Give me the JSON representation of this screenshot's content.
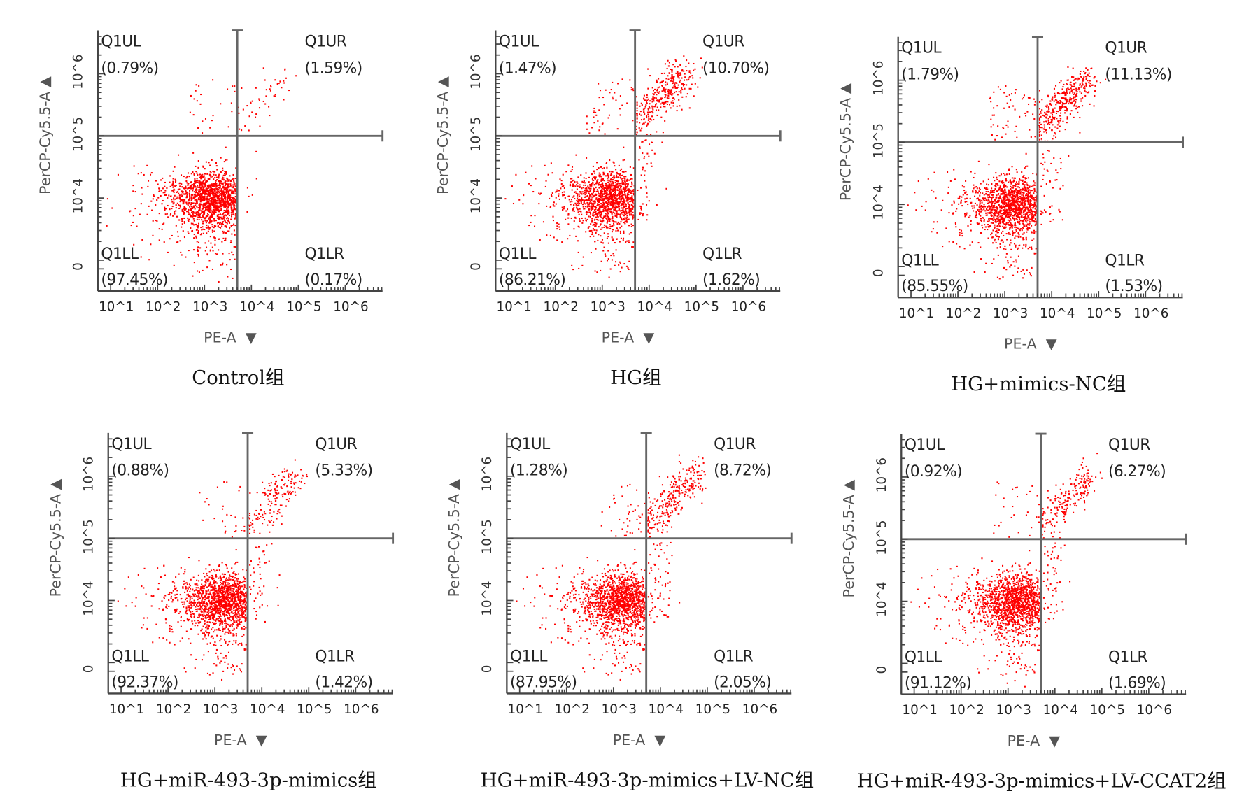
{
  "chart_data": [
    {
      "type": "scatter",
      "title": "Control组",
      "xlabel": "PE-A",
      "ylabel": "PerCP-Cy5.5-A",
      "x_scale": "log",
      "y_scale": "biexponential",
      "x_ticks": [
        "10^1",
        "10^2",
        "10^3",
        "10^4",
        "10^5",
        "10^6"
      ],
      "y_ticks": [
        "0",
        "10^4",
        "10^5",
        "10^6"
      ],
      "x_gate": 5000,
      "y_gate": 100000,
      "quadrants": {
        "UL": {
          "label": "Q1UL",
          "percent": "(0.79%)",
          "value": 0.79
        },
        "UR": {
          "label": "Q1UR",
          "percent": "(1.59%)",
          "value": 1.59
        },
        "LL": {
          "label": "Q1LL",
          "percent": "(97.45%)",
          "value": 97.45
        },
        "LR": {
          "label": "Q1LR",
          "percent": "(0.17%)",
          "value": 0.17
        }
      }
    },
    {
      "type": "scatter",
      "title": "HG组",
      "xlabel": "PE-A",
      "ylabel": "PerCP-Cy5.5-A",
      "x_scale": "log",
      "y_scale": "biexponential",
      "x_ticks": [
        "10^1",
        "10^2",
        "10^3",
        "10^4",
        "10^5",
        "10^6"
      ],
      "y_ticks": [
        "0",
        "10^4",
        "10^5",
        "10^6"
      ],
      "x_gate": 5000,
      "y_gate": 100000,
      "quadrants": {
        "UL": {
          "label": "Q1UL",
          "percent": "(1.47%)",
          "value": 1.47
        },
        "UR": {
          "label": "Q1UR",
          "percent": "(10.70%)",
          "value": 10.7
        },
        "LL": {
          "label": "Q1LL",
          "percent": "(86.21%)",
          "value": 86.21
        },
        "LR": {
          "label": "Q1LR",
          "percent": "(1.62%)",
          "value": 1.62
        }
      }
    },
    {
      "type": "scatter",
      "title": "HG+mimics-NC组",
      "xlabel": "PE-A",
      "ylabel": "PerCP-Cy5.5-A",
      "x_scale": "log",
      "y_scale": "biexponential",
      "x_ticks": [
        "10^1",
        "10^2",
        "10^3",
        "10^4",
        "10^5",
        "10^6"
      ],
      "y_ticks": [
        "0",
        "10^4",
        "10^5",
        "10^6"
      ],
      "x_gate": 5000,
      "y_gate": 100000,
      "quadrants": {
        "UL": {
          "label": "Q1UL",
          "percent": "(1.79%)",
          "value": 1.79
        },
        "UR": {
          "label": "Q1UR",
          "percent": "(11.13%)",
          "value": 11.13
        },
        "LL": {
          "label": "Q1LL",
          "percent": "(85.55%)",
          "value": 85.55
        },
        "LR": {
          "label": "Q1LR",
          "percent": "(1.53%)",
          "value": 1.53
        }
      }
    },
    {
      "type": "scatter",
      "title": "HG+miR-493-3p-mimics组",
      "xlabel": "PE-A",
      "ylabel": "PerCP-Cy5.5-A",
      "x_scale": "log",
      "y_scale": "biexponential",
      "x_ticks": [
        "10^1",
        "10^2",
        "10^3",
        "10^4",
        "10^5",
        "10^6"
      ],
      "y_ticks": [
        "0",
        "10^4",
        "10^5",
        "10^6"
      ],
      "x_gate": 5000,
      "y_gate": 100000,
      "quadrants": {
        "UL": {
          "label": "Q1UL",
          "percent": "(0.88%)",
          "value": 0.88
        },
        "UR": {
          "label": "Q1UR",
          "percent": "(5.33%)",
          "value": 5.33
        },
        "LL": {
          "label": "Q1LL",
          "percent": "(92.37%)",
          "value": 92.37
        },
        "LR": {
          "label": "Q1LR",
          "percent": "(1.42%)",
          "value": 1.42
        }
      }
    },
    {
      "type": "scatter",
      "title": "HG+miR-493-3p-mimics+LV-NC组",
      "xlabel": "PE-A",
      "ylabel": "PerCP-Cy5.5-A",
      "x_scale": "log",
      "y_scale": "biexponential",
      "x_ticks": [
        "10^1",
        "10^2",
        "10^3",
        "10^4",
        "10^5",
        "10^6"
      ],
      "y_ticks": [
        "0",
        "10^4",
        "10^5",
        "10^6"
      ],
      "x_gate": 5000,
      "y_gate": 100000,
      "quadrants": {
        "UL": {
          "label": "Q1UL",
          "percent": "(1.28%)",
          "value": 1.28
        },
        "UR": {
          "label": "Q1UR",
          "percent": "(8.72%)",
          "value": 8.72
        },
        "LL": {
          "label": "Q1LL",
          "percent": "(87.95%)",
          "value": 87.95
        },
        "LR": {
          "label": "Q1LR",
          "percent": "(2.05%)",
          "value": 2.05
        }
      }
    },
    {
      "type": "scatter",
      "title": "HG+miR-493-3p-mimics+LV-CCAT2组",
      "xlabel": "PE-A",
      "ylabel": "PerCP-Cy5.5-A",
      "x_scale": "log",
      "y_scale": "biexponential",
      "x_ticks": [
        "10^1",
        "10^2",
        "10^3",
        "10^4",
        "10^5",
        "10^6"
      ],
      "y_ticks": [
        "0",
        "10^4",
        "10^5",
        "10^6"
      ],
      "x_gate": 5000,
      "y_gate": 100000,
      "quadrants": {
        "UL": {
          "label": "Q1UL",
          "percent": "(0.92%)",
          "value": 0.92
        },
        "UR": {
          "label": "Q1UR",
          "percent": "(6.27%)",
          "value": 6.27
        },
        "LL": {
          "label": "Q1LL",
          "percent": "(91.12%)",
          "value": 91.12
        },
        "LR": {
          "label": "Q1LR",
          "percent": "(1.69%)",
          "value": 1.69
        }
      }
    }
  ],
  "colors": {
    "events": "#ff0000",
    "gate": "#666666",
    "axis": "#444444"
  },
  "axis_arrow_icon": "triangle-down-icon"
}
